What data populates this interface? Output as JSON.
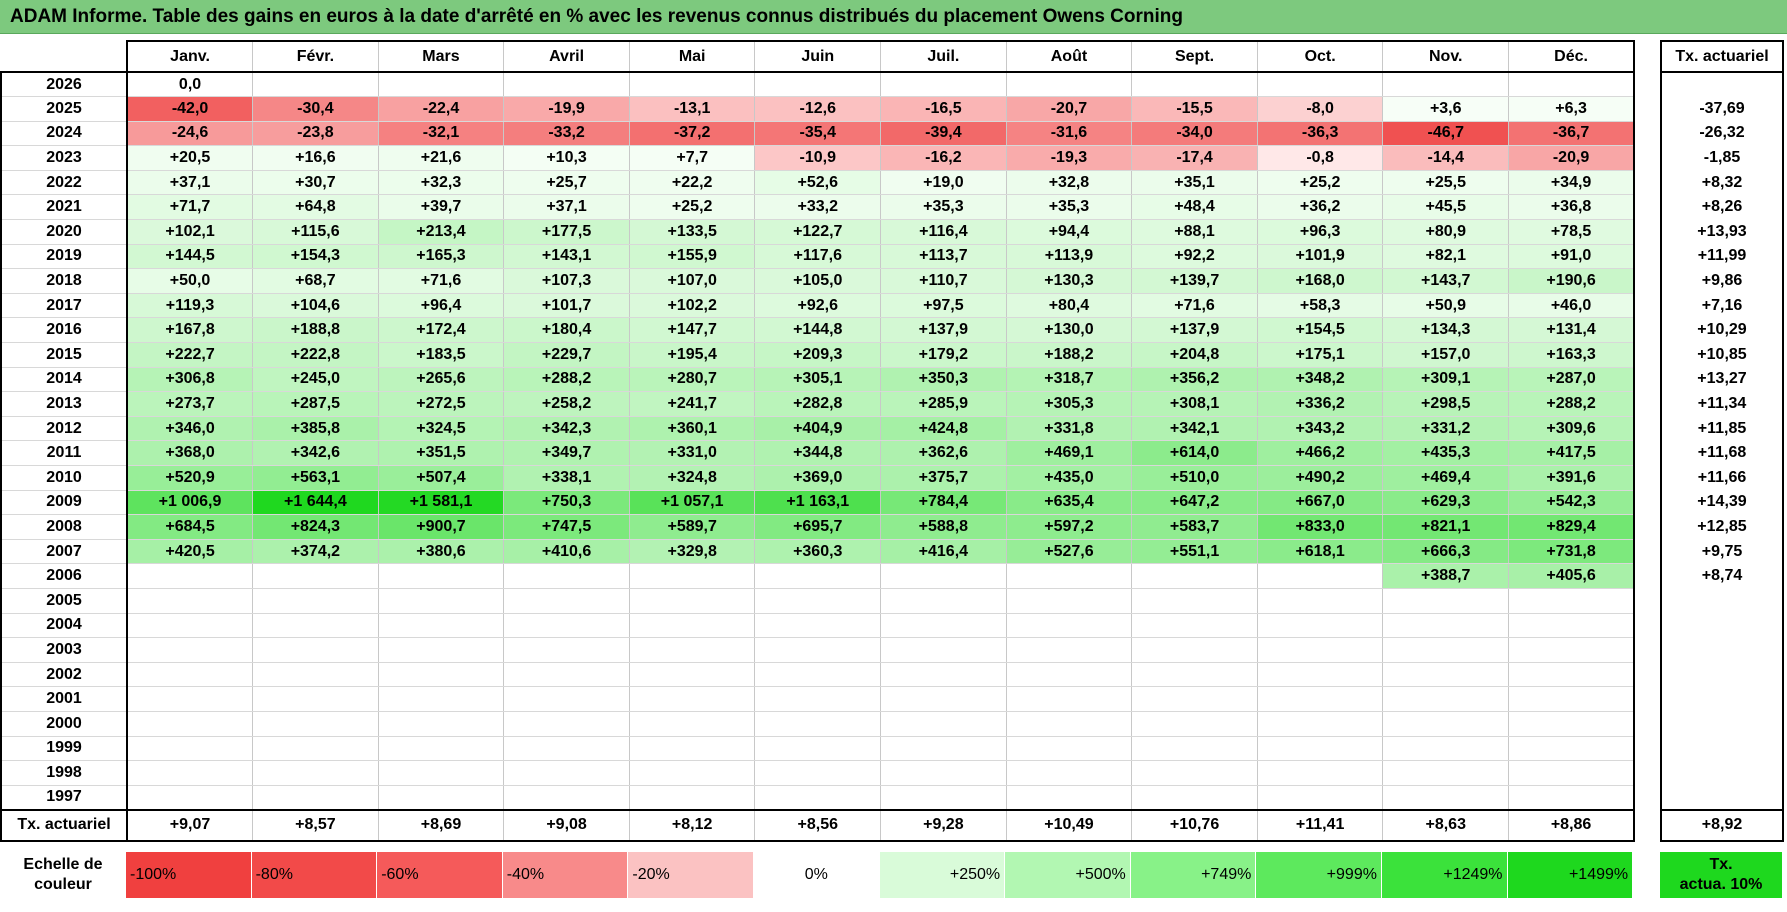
{
  "title": "ADAM Informe. Table des gains en euros à la date d'arrêté en % avec les revenus connus distribués du placement Owens Corning",
  "months": [
    "Janv.",
    "Févr.",
    "Mars",
    "Avril",
    "Mai",
    "Juin",
    "Juil.",
    "Août",
    "Sept.",
    "Oct.",
    "Nov.",
    "Déc."
  ],
  "side_header": "Tx. actuariel",
  "rows": [
    {
      "year": "2026",
      "cells": [
        "0,0",
        "",
        "",
        "",
        "",
        "",
        "",
        "",
        "",
        "",
        "",
        ""
      ],
      "rate": ""
    },
    {
      "year": "2025",
      "cells": [
        "-42,0",
        "-30,4",
        "-22,4",
        "-19,9",
        "-13,1",
        "-12,6",
        "-16,5",
        "-20,7",
        "-15,5",
        "-8,0",
        "+3,6",
        "+6,3"
      ],
      "rate": "-37,69"
    },
    {
      "year": "2024",
      "cells": [
        "-24,6",
        "-23,8",
        "-32,1",
        "-33,2",
        "-37,2",
        "-35,4",
        "-39,4",
        "-31,6",
        "-34,0",
        "-36,3",
        "-46,7",
        "-36,7"
      ],
      "rate": "-26,32"
    },
    {
      "year": "2023",
      "cells": [
        "+20,5",
        "+16,6",
        "+21,6",
        "+10,3",
        "+7,7",
        "-10,9",
        "-16,2",
        "-19,3",
        "-17,4",
        "-0,8",
        "-14,4",
        "-20,9"
      ],
      "rate": "-1,85"
    },
    {
      "year": "2022",
      "cells": [
        "+37,1",
        "+30,7",
        "+32,3",
        "+25,7",
        "+22,2",
        "+52,6",
        "+19,0",
        "+32,8",
        "+35,1",
        "+25,2",
        "+25,5",
        "+34,9"
      ],
      "rate": "+8,32"
    },
    {
      "year": "2021",
      "cells": [
        "+71,7",
        "+64,8",
        "+39,7",
        "+37,1",
        "+25,2",
        "+33,2",
        "+35,3",
        "+35,3",
        "+48,4",
        "+36,2",
        "+45,5",
        "+36,8"
      ],
      "rate": "+8,26"
    },
    {
      "year": "2020",
      "cells": [
        "+102,1",
        "+115,6",
        "+213,4",
        "+177,5",
        "+133,5",
        "+122,7",
        "+116,4",
        "+94,4",
        "+88,1",
        "+96,3",
        "+80,9",
        "+78,5"
      ],
      "rate": "+13,93"
    },
    {
      "year": "2019",
      "cells": [
        "+144,5",
        "+154,3",
        "+165,3",
        "+143,1",
        "+155,9",
        "+117,6",
        "+113,7",
        "+113,9",
        "+92,2",
        "+101,9",
        "+82,1",
        "+91,0"
      ],
      "rate": "+11,99"
    },
    {
      "year": "2018",
      "cells": [
        "+50,0",
        "+68,7",
        "+71,6",
        "+107,3",
        "+107,0",
        "+105,0",
        "+110,7",
        "+130,3",
        "+139,7",
        "+168,0",
        "+143,7",
        "+190,6"
      ],
      "rate": "+9,86"
    },
    {
      "year": "2017",
      "cells": [
        "+119,3",
        "+104,6",
        "+96,4",
        "+101,7",
        "+102,2",
        "+92,6",
        "+97,5",
        "+80,4",
        "+71,6",
        "+58,3",
        "+50,9",
        "+46,0"
      ],
      "rate": "+7,16"
    },
    {
      "year": "2016",
      "cells": [
        "+167,8",
        "+188,8",
        "+172,4",
        "+180,4",
        "+147,7",
        "+144,8",
        "+137,9",
        "+130,0",
        "+137,9",
        "+154,5",
        "+134,3",
        "+131,4"
      ],
      "rate": "+10,29"
    },
    {
      "year": "2015",
      "cells": [
        "+222,7",
        "+222,8",
        "+183,5",
        "+229,7",
        "+195,4",
        "+209,3",
        "+179,2",
        "+188,2",
        "+204,8",
        "+175,1",
        "+157,0",
        "+163,3"
      ],
      "rate": "+10,85"
    },
    {
      "year": "2014",
      "cells": [
        "+306,8",
        "+245,0",
        "+265,6",
        "+288,2",
        "+280,7",
        "+305,1",
        "+350,3",
        "+318,7",
        "+356,2",
        "+348,2",
        "+309,1",
        "+287,0"
      ],
      "rate": "+13,27"
    },
    {
      "year": "2013",
      "cells": [
        "+273,7",
        "+287,5",
        "+272,5",
        "+258,2",
        "+241,7",
        "+282,8",
        "+285,9",
        "+305,3",
        "+308,1",
        "+336,2",
        "+298,5",
        "+288,2"
      ],
      "rate": "+11,34"
    },
    {
      "year": "2012",
      "cells": [
        "+346,0",
        "+385,8",
        "+324,5",
        "+342,3",
        "+360,1",
        "+404,9",
        "+424,8",
        "+331,8",
        "+342,1",
        "+343,2",
        "+331,2",
        "+309,6"
      ],
      "rate": "+11,85"
    },
    {
      "year": "2011",
      "cells": [
        "+368,0",
        "+342,6",
        "+351,5",
        "+349,7",
        "+331,0",
        "+344,8",
        "+362,6",
        "+469,1",
        "+614,0",
        "+466,2",
        "+435,3",
        "+417,5"
      ],
      "rate": "+11,68"
    },
    {
      "year": "2010",
      "cells": [
        "+520,9",
        "+563,1",
        "+507,4",
        "+338,1",
        "+324,8",
        "+369,0",
        "+375,7",
        "+435,0",
        "+510,0",
        "+490,2",
        "+469,4",
        "+391,6"
      ],
      "rate": "+11,66"
    },
    {
      "year": "2009",
      "cells": [
        "+1 006,9",
        "+1 644,4",
        "+1 581,1",
        "+750,3",
        "+1 057,1",
        "+1 163,1",
        "+784,4",
        "+635,4",
        "+647,2",
        "+667,0",
        "+629,3",
        "+542,3"
      ],
      "rate": "+14,39"
    },
    {
      "year": "2008",
      "cells": [
        "+684,5",
        "+824,3",
        "+900,7",
        "+747,5",
        "+589,7",
        "+695,7",
        "+588,8",
        "+597,2",
        "+583,7",
        "+833,0",
        "+821,1",
        "+829,4"
      ],
      "rate": "+12,85"
    },
    {
      "year": "2007",
      "cells": [
        "+420,5",
        "+374,2",
        "+380,6",
        "+410,6",
        "+329,8",
        "+360,3",
        "+416,4",
        "+527,6",
        "+551,1",
        "+618,1",
        "+666,3",
        "+731,8"
      ],
      "rate": "+9,75"
    },
    {
      "year": "2006",
      "cells": [
        "",
        "",
        "",
        "",
        "",
        "",
        "",
        "",
        "",
        "",
        "+388,7",
        "+405,6"
      ],
      "rate": "+8,74"
    },
    {
      "year": "2005",
      "cells": [
        "",
        "",
        "",
        "",
        "",
        "",
        "",
        "",
        "",
        "",
        "",
        ""
      ],
      "rate": ""
    },
    {
      "year": "2004",
      "cells": [
        "",
        "",
        "",
        "",
        "",
        "",
        "",
        "",
        "",
        "",
        "",
        ""
      ],
      "rate": ""
    },
    {
      "year": "2003",
      "cells": [
        "",
        "",
        "",
        "",
        "",
        "",
        "",
        "",
        "",
        "",
        "",
        ""
      ],
      "rate": ""
    },
    {
      "year": "2002",
      "cells": [
        "",
        "",
        "",
        "",
        "",
        "",
        "",
        "",
        "",
        "",
        "",
        ""
      ],
      "rate": ""
    },
    {
      "year": "2001",
      "cells": [
        "",
        "",
        "",
        "",
        "",
        "",
        "",
        "",
        "",
        "",
        "",
        ""
      ],
      "rate": ""
    },
    {
      "year": "2000",
      "cells": [
        "",
        "",
        "",
        "",
        "",
        "",
        "",
        "",
        "",
        "",
        "",
        ""
      ],
      "rate": ""
    },
    {
      "year": "1999",
      "cells": [
        "",
        "",
        "",
        "",
        "",
        "",
        "",
        "",
        "",
        "",
        "",
        ""
      ],
      "rate": ""
    },
    {
      "year": "1998",
      "cells": [
        "",
        "",
        "",
        "",
        "",
        "",
        "",
        "",
        "",
        "",
        "",
        ""
      ],
      "rate": ""
    },
    {
      "year": "1997",
      "cells": [
        "",
        "",
        "",
        "",
        "",
        "",
        "",
        "",
        "",
        "",
        "",
        ""
      ],
      "rate": ""
    }
  ],
  "footer": {
    "label": "Tx. actuariel",
    "values": [
      "+9,07",
      "+8,57",
      "+8,69",
      "+9,08",
      "+8,12",
      "+8,56",
      "+9,28",
      "+10,49",
      "+10,76",
      "+11,41",
      "+8,63",
      "+8,86"
    ],
    "total": "+8,92"
  },
  "scale": {
    "label_line1": "Echelle de",
    "label_line2": "couleur",
    "items": [
      {
        "label": "-100%",
        "color": "#f0403f"
      },
      {
        "label": "-80%",
        "color": "#f24a49"
      },
      {
        "label": "-60%",
        "color": "#f55a5a"
      },
      {
        "label": "-40%",
        "color": "#f88a8a"
      },
      {
        "label": "-20%",
        "color": "#fbc2c2"
      },
      {
        "label": "0%",
        "color": "#ffffff"
      },
      {
        "label": "+250%",
        "color": "#d9fbd9"
      },
      {
        "label": "+500%",
        "color": "#b2f7b2"
      },
      {
        "label": "+749%",
        "color": "#88f288"
      },
      {
        "label": "+999%",
        "color": "#5de95d"
      },
      {
        "label": "+1249%",
        "color": "#3be23b"
      },
      {
        "label": "+1499%",
        "color": "#1ed81e"
      }
    ],
    "actua_line1": "Tx.",
    "actua_line2": "actua. 10%",
    "actua_color": "#1ed81e"
  },
  "colors": {
    "title_bg": "#7dc97e"
  }
}
